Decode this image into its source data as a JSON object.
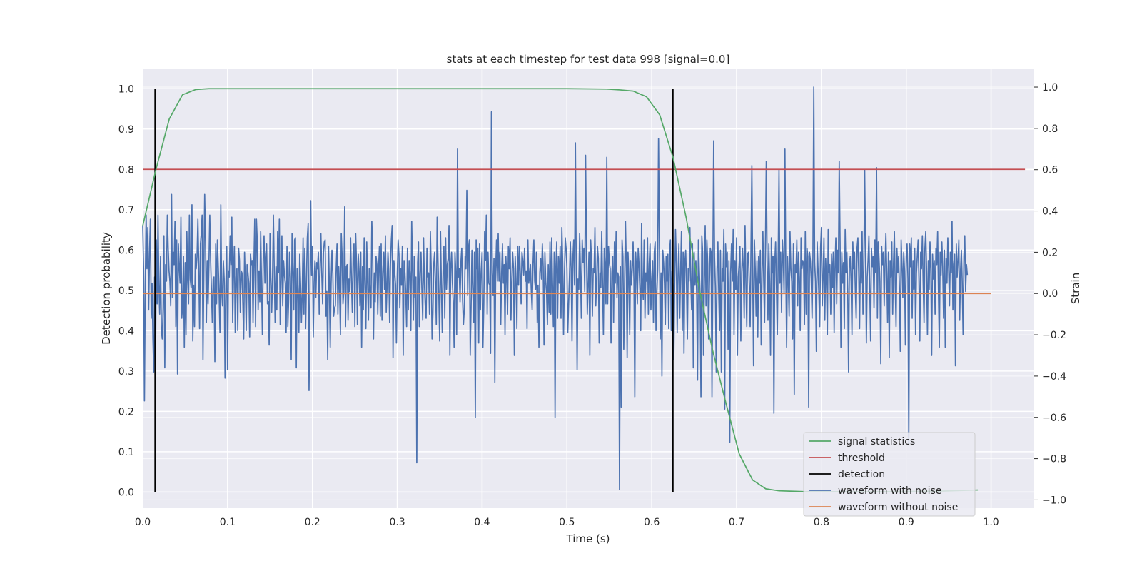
{
  "chart_data": {
    "type": "line",
    "title": "stats at each timestep for test data 998 [signal=0.0]",
    "xlabel": "Time (s)",
    "ylabel_left": "Detection probability",
    "ylabel_right": "Strain",
    "xlim": [
      0.0,
      1.05
    ],
    "ylim_left": [
      -0.04,
      1.05
    ],
    "ylim_right": [
      -1.04,
      1.09
    ],
    "x_ticks": [
      "0.0",
      "0.1",
      "0.2",
      "0.3",
      "0.4",
      "0.5",
      "0.6",
      "0.7",
      "0.8",
      "0.9",
      "1.0"
    ],
    "y_left_ticks": [
      "0.0",
      "0.1",
      "0.2",
      "0.3",
      "0.4",
      "0.5",
      "0.6",
      "0.7",
      "0.8",
      "0.9",
      "1.0"
    ],
    "y_right_ticks": [
      "−1.0",
      "−0.8",
      "−0.6",
      "−0.4",
      "−0.2",
      "0.0",
      "0.2",
      "0.4",
      "0.6",
      "0.8",
      "1.0"
    ],
    "grid": true,
    "legend_position": "lower-right",
    "legend": [
      {
        "label": "signal statistics",
        "color": "#55a868"
      },
      {
        "label": "threshold",
        "color": "#c44e52"
      },
      {
        "label": "detection",
        "color": "#000000"
      },
      {
        "label": "waveform with noise",
        "color": "#4c72b0"
      },
      {
        "label": "waveform without noise",
        "color": "#dd8452"
      }
    ],
    "series": [
      {
        "name": "signal statistics",
        "axis": "left",
        "color": "#55a868",
        "x": [
          0.0,
          0.0156,
          0.0313,
          0.0469,
          0.0625,
          0.0781,
          0.0938,
          0.1094,
          0.125,
          0.25,
          0.375,
          0.5,
          0.547,
          0.5625,
          0.5781,
          0.5938,
          0.6094,
          0.625,
          0.6406,
          0.6563,
          0.6719,
          0.6875,
          0.7031,
          0.7188,
          0.7344,
          0.75,
          0.7656,
          0.7813,
          0.8125,
          0.875,
          0.9375,
          0.9844
        ],
        "y": [
          0.66,
          0.8,
          0.925,
          0.985,
          0.998,
          1.0,
          1.0,
          1.0,
          1.0,
          1.0,
          1.0,
          1.0,
          0.999,
          0.997,
          0.994,
          0.98,
          0.935,
          0.83,
          0.68,
          0.5,
          0.35,
          0.22,
          0.095,
          0.03,
          0.008,
          0.003,
          0.002,
          0.001,
          0.001,
          0.001,
          0.002,
          0.005
        ]
      },
      {
        "name": "threshold",
        "axis": "left",
        "color": "#c44e52",
        "x": [
          0.0,
          1.04
        ],
        "y": [
          0.8,
          0.8
        ]
      },
      {
        "name": "detection",
        "axis": "left",
        "color": "#000000",
        "type": "vlines",
        "x": [
          0.0145,
          0.625
        ],
        "y_range": [
          0.0,
          1.0
        ]
      },
      {
        "name": "waveform with noise",
        "axis": "right",
        "color": "#4c72b0",
        "x_start": 0.0,
        "x_step": 0.001,
        "y": [
          0.33,
          0.12,
          -0.52,
          0.05,
          0.38,
          0.12,
          0.32,
          -0.08,
          0.2,
          0.36,
          -0.12,
          0.05,
          -0.22,
          -0.38,
          0.08,
          -0.4,
          0.26,
          -0.05,
          0.38,
          0.04,
          -0.1,
          0.18,
          -0.18,
          -0.22,
          -0.07,
          0.28,
          -0.36,
          0.14,
          0.06,
          0.38,
          0.22,
          0.11,
          0.06,
          -0.06,
          0.48,
          -0.02,
          0.2,
          0.14,
          0.35,
          -0.16,
          0.26,
          -0.39,
          0.24,
          0.13,
          0.05,
          0.37,
          -0.12,
          -0.06,
          0.18,
          -0.26,
          0.15,
          -0.2,
          0.3,
          0.06,
          -0.05,
          0.38,
          0.07,
          0.03,
          0.43,
          -0.23,
          0.04,
          -0.16,
          0.19,
          0.12,
          0.18,
          0.36,
          0.14,
          -0.17,
          0.24,
          0.29,
          0.38,
          -0.32,
          0.1,
          0.48,
          0.25,
          -0.14,
          0.16,
          -0.05,
          0.14,
          0.38,
          0.16,
          0.01,
          -0.14,
          0.07,
          0.08,
          -0.33,
          0.24,
          -0.05,
          0.26,
          0.13,
          0.0,
          -0.19,
          0.43,
          0.02,
          -0.06,
          0.16,
          0.07,
          -0.41,
          0.04,
          0.23,
          -0.37,
          0.11,
          0.08,
          0.28,
          0.14,
          0.37,
          -0.14,
          0.1,
          0.23,
          -0.19,
          0.08,
          0.12,
          -0.18,
          0.22,
          0.16,
          -0.09,
          0.11,
          0.1,
          -0.05,
          -0.22,
          0.2,
          0.04,
          -0.18,
          0.14,
          0.1,
          0.05,
          -0.21,
          0.19,
          0.14,
          0.16,
          -0.14,
          0.14,
          0.36,
          -0.16,
          0.36,
          0.25,
          -0.08,
          0.11,
          -0.04,
          0.3,
          0.05,
          -0.2,
          0.17,
          0.28,
          0.05,
          0.19,
          0.24,
          -0.05,
          -0.04,
          -0.25,
          0.29,
          0.07,
          -0.09,
          0.08,
          0.38,
          0.11,
          -0.14,
          0.13,
          -0.08,
          0.3,
          0.1,
          0.36,
          -0.15,
          0.05,
          0.28,
          -0.06,
          0.16,
          0.09,
          0.05,
          -0.19,
          0.23,
          -0.16,
          -0.03,
          0.2,
          0.08,
          -0.32,
          0.29,
          0.12,
          -0.08,
          0.26,
          0.27,
          -0.36,
          0.12,
          0.01,
          -0.19,
          0.19,
          0.05,
          -0.14,
          0.0,
          0.27,
          -0.1,
          0.22,
          -0.17,
          0.07,
          0.27,
          0.34,
          -0.47,
          -0.04,
          0.45,
          0.09,
          0.23,
          -0.21,
          0.06,
          0.16,
          -0.02,
          0.15,
          0.12,
          0.2,
          -0.1,
          0.12,
          0.29,
          0.1,
          -0.05,
          0.2,
          0.25,
          0.26,
          -0.11,
          0.01,
          -0.32,
          0.23,
          0.02,
          -0.26,
          0.05,
          0.21,
          0.1,
          -0.11,
          -0.07,
          -0.06,
          0.12,
          0.24,
          -0.1,
          0.13,
          0.02,
          -0.2,
          0.29,
          0.18,
          -0.05,
          0.01,
          0.42,
          -0.16,
          0.13,
          0.14,
          -0.13,
          0.07,
          0.01,
          0.27,
          0.06,
          -0.09,
          0.2,
          0.24,
          -0.16,
          0.29,
          0.14,
          -0.15,
          0.19,
          0.11,
          -0.06,
          0.2,
          -0.26,
          0.13,
          -0.08,
          0.27,
          0.04,
          -0.17,
          0.25,
          0.05,
          -0.13,
          0.12,
          0.01,
          -0.07,
          0.35,
          0.2,
          -0.22,
          0.1,
          -0.04,
          0.18,
          0.14,
          -0.1,
          0.12,
          0.23,
          -0.11,
          0.24,
          -0.13,
          0.1,
          0.2,
          0.02,
          0.28,
          -0.09,
          0.04,
          0.2,
          0.11,
          -0.14,
          0.14,
          0.26,
          0.33,
          -0.31,
          0.16,
          0.1,
          0.04,
          -0.24,
          0.09,
          0.26,
          0.19,
          -0.07,
          0.12,
          0.04,
          0.23,
          -0.3,
          0.16,
          0.1,
          0.0,
          -0.16,
          0.22,
          -0.08,
          0.16,
          0.1,
          -0.18,
          0.35,
          0.11,
          -0.13,
          0.18,
          -0.02,
          0.08,
          -0.82,
          0.15,
          0.25,
          -0.16,
          0.1,
          0.2,
          0.02,
          -0.13,
          0.27,
          0.05,
          -0.06,
          -0.12,
          0.22,
          0.08,
          0.1,
          -0.1,
          0.3,
          0.12,
          -0.22,
          -0.1,
          0.14,
          0.2,
          0.05,
          -0.15,
          0.37,
          0.16,
          -0.01,
          -0.23,
          0.3,
          0.04,
          -0.19,
          0.11,
          0.23,
          -0.12,
          0.27,
          0.02,
          0.14,
          0.17,
          0.33,
          -0.3,
          0.12,
          0.2,
          0.05,
          -0.04,
          -0.26,
          0.2,
          0.1,
          -0.2,
          0.7,
          0.08,
          0.12,
          -0.04,
          0.15,
          0.22,
          -0.03,
          -0.15,
          -0.08,
          0.18,
          0.12,
          0.5,
          -0.01,
          0.22,
          0.26,
          -0.3,
          -0.07,
          0.21,
          0.03,
          -0.14,
          0.2,
          -0.6,
          0.26,
          0.12,
          0.22,
          -0.24,
          0.24,
          -0.08,
          0.11,
          0.2,
          -0.26,
          -0.05,
          0.3,
          0.16,
          0.38,
          -0.1,
          0.2,
          0.05,
          0.04,
          -0.29,
          0.88,
          0.1,
          -0.01,
          0.17,
          -0.43,
          0.11,
          0.26,
          0.06,
          0.29,
          0.06,
          0.2,
          -0.15,
          0.1,
          0.24,
          0.05,
          0.14,
          -0.2,
          0.18,
          0.08,
          -0.1,
          0.23,
          0.12,
          0.27,
          -0.13,
          0.06,
          0.2,
          0.12,
          -0.3,
          0.18,
          0.07,
          -0.17,
          0.23,
          0.04,
          0.23,
          0.1,
          -0.05,
          0.2,
          0.16,
          0.09,
          0.22,
          0.06,
          0.11,
          -0.17,
          0.26,
          0.05,
          0.1,
          0.14,
          0.01,
          -0.08,
          0.14,
          0.26,
          0.06,
          0.02,
          0.2,
          -0.14,
          0.04,
          -0.26,
          0.1,
          0.17,
          0.07,
          0.24,
          0.13,
          -0.25,
          0.2,
          0.06,
          0.0,
          -0.15,
          0.14,
          -0.09,
          0.25,
          -0.1,
          0.27,
          0.05,
          -0.16,
          0.2,
          -0.6,
          0.13,
          0.25,
          -0.12,
          0.18,
          0.05,
          0.23,
          -0.12,
          0.32,
          0.15,
          -0.2,
          0.08,
          0.27,
          0.22,
          0.12,
          -0.19,
          -0.05,
          0.08,
          0.25,
          0.11,
          -0.23,
          0.17,
          0.26,
          0.04,
          0.73,
          0.12,
          -0.37,
          0.07,
          0.02,
          0.29,
          0.1,
          -0.12,
          0.26,
          0.15,
          0.22,
          0.01,
          0.67,
          0.23,
          -0.1,
          0.05,
          0.2,
          -0.3,
          0.26,
          0.16,
          -0.11,
          0.12,
          0.1,
          0.32,
          -0.06,
          0.06,
          0.23,
          0.17,
          -0.24,
          0.1,
          0.03,
          0.3,
          0.05,
          -0.2,
          0.22,
          0.14,
          -0.05,
          0.66,
          -0.05,
          0.23,
          0.15,
          0.12,
          -0.24,
          0.1,
          0.18,
          -0.14,
          0.25,
          0.05,
          0.3,
          -0.02,
          0.1,
          0.08,
          -0.95,
          0.13,
          -0.55,
          0.26,
          0.18,
          -0.27,
          0.06,
          0.35,
          0.13,
          -0.31,
          0.2,
          0.08,
          -0.2,
          0.16,
          0.04,
          0.12,
          0.25,
          0.06,
          -0.5,
          0.2,
          0.11,
          -0.05,
          0.22,
          0.14,
          0.02,
          -0.18,
          0.34,
          0.04,
          -0.03,
          0.26,
          -0.12,
          0.1,
          0.06,
          0.27,
          -0.1,
          0.14,
          0.24,
          -0.08,
          0.06,
          0.16,
          -0.14,
          0.2,
          0.25,
          -0.18,
          0.0,
          0.12,
          0.75,
          0.28,
          -0.22,
          0.1,
          -0.4,
          0.21,
          0.15,
          0.05,
          -0.15,
          0.18,
          0.06,
          0.19,
          -0.17,
          0.2,
          0.26,
          -0.18,
          0.11,
          0.04,
          -0.32,
          0.05,
          0.31,
          0.14,
          -0.19,
          0.09,
          0.24,
          -0.12,
          0.1,
          0.3,
          -0.18,
          0.2,
          -0.29,
          0.15,
          0.21,
          0.04,
          -0.22,
          0.12,
          0.06,
          0.32,
          0.07,
          -0.08,
          0.24,
          -0.36,
          0.2,
          0.04,
          0.16,
          -0.01,
          -0.42,
          0.26,
          0.12,
          0.0,
          -0.5,
          0.28,
          0.2,
          -0.3,
          0.04,
          0.33,
          -0.06,
          0.26,
          0.14,
          -0.22,
          0.05,
          0.22,
          0.2,
          -0.5,
          0.1,
          0.74,
          0.18,
          0.03,
          -0.38,
          0.12,
          0.25,
          0.0,
          -0.18,
          0.21,
          -0.38,
          0.12,
          0.06,
          0.31,
          -0.56,
          0.24,
          0.13,
          0.2,
          -0.27,
          0.16,
          -0.72,
          0.1,
          0.24,
          0.06,
          0.31,
          -0.2,
          0.16,
          0.02,
          0.27,
          -0.3,
          0.08,
          0.14,
          0.23,
          -0.23,
          0.1,
          0.22,
          0.11,
          -0.12,
          0.33,
          0.05,
          -0.16,
          0.19,
          0.2,
          0.04,
          -0.16,
          0.23,
          0.62,
          0.1,
          -0.35,
          0.26,
          0.12,
          -0.11,
          0.16,
          -0.21,
          0.18,
          0.05,
          0.21,
          -0.25,
          0.1,
          0.3,
          0.06,
          -0.14,
          0.22,
          0.64,
          0.16,
          -0.13,
          0.24,
          0.05,
          -0.3,
          0.27,
          0.1,
          0.18,
          -0.58,
          0.15,
          0.25,
          0.03,
          -0.2,
          0.15,
          0.6,
          0.05,
          0.2,
          -0.09,
          0.26,
          0.17,
          0.0,
          0.7,
          0.12,
          -0.26,
          0.18,
          0.06,
          -0.11,
          0.3,
          0.12,
          0.06,
          -0.22,
          0.24,
          -0.49,
          0.14,
          0.1,
          0.26,
          -0.06,
          0.2,
          0.08,
          -0.18,
          0.27,
          0.12,
          0.16,
          0.14,
          -0.15,
          0.3,
          -0.1,
          0.22,
          0.18,
          -0.55,
          0.2,
          0.16,
          0.07,
          -0.12,
          0.18,
          1.0,
          0.15,
          0.06,
          -0.28,
          0.25,
          0.12,
          0.0,
          -0.16,
          0.22,
          0.32,
          -0.06,
          0.08,
          0.27,
          -0.13,
          0.17,
          0.05,
          -0.2,
          0.31,
          0.1,
          0.14,
          -0.1,
          0.19,
          0.03,
          0.2,
          -0.19,
          0.12,
          0.27,
          -0.05,
          0.21,
          0.1,
          0.64,
          0.25,
          -0.26,
          0.2,
          0.05,
          0.15,
          -0.17,
          0.31,
          0.1,
          0.2,
          0.02,
          -0.38,
          0.14,
          0.18,
          0.06,
          -0.2,
          0.25,
          0.12,
          0.2,
          0.01,
          -0.12,
          0.22,
          0.27,
          0.1,
          -0.17,
          0.2,
          0.05,
          0.3,
          -0.1,
          0.12,
          0.6,
          0.2,
          -0.24,
          0.08,
          0.16,
          0.28,
          0.02,
          -0.23,
          0.22,
          0.13,
          0.18,
          -0.07,
          0.26,
          0.1,
          0.61,
          -0.12,
          0.25,
          0.16,
          0.06,
          -0.34,
          0.23,
          0.14,
          0.2,
          -0.06,
          0.14,
          0.29,
          0.1,
          -0.14,
          0.2,
          -0.31,
          0.16,
          0.08,
          0.25,
          -0.1,
          0.15,
          0.3,
          0.04,
          -0.16,
          0.22,
          0.1,
          0.18,
          0.02,
          -0.28,
          0.26,
          0.14,
          -0.02,
          0.2,
          0.11,
          -0.25,
          0.18,
          0.24,
          0.07,
          -0.73,
          0.24,
          0.13,
          0.27,
          -0.12,
          0.16,
          0.02,
          0.22,
          -0.2,
          0.1,
          0.18,
          0.26,
          0.06,
          -0.23,
          0.2,
          0.12,
          0.28,
          0.04,
          -0.14,
          0.22,
          0.3,
          0.11,
          -0.2,
          0.16,
          0.02,
          0.25,
          0.12,
          -0.3,
          0.19,
          0.07,
          0.16,
          -0.1,
          0.22,
          0.14,
          0.3,
          0.0,
          -0.26,
          0.2,
          0.09,
          0.25,
          0.13,
          -0.12,
          0.21,
          -0.26,
          0.17,
          0.05,
          0.27,
          0.12,
          -0.06,
          0.2,
          0.1,
          0.35,
          -0.08,
          0.14,
          0.19,
          -0.35,
          0.24,
          0.08,
          0.16,
          0.26,
          -0.13,
          0.11,
          0.21,
          0.05,
          -0.2,
          0.18,
          0.28,
          0.01,
          0.14,
          0.09
        ]
      },
      {
        "name": "waveform without noise",
        "axis": "right",
        "color": "#dd8452",
        "x": [
          0.0,
          1.0
        ],
        "y": [
          0.0,
          0.0
        ]
      }
    ]
  }
}
